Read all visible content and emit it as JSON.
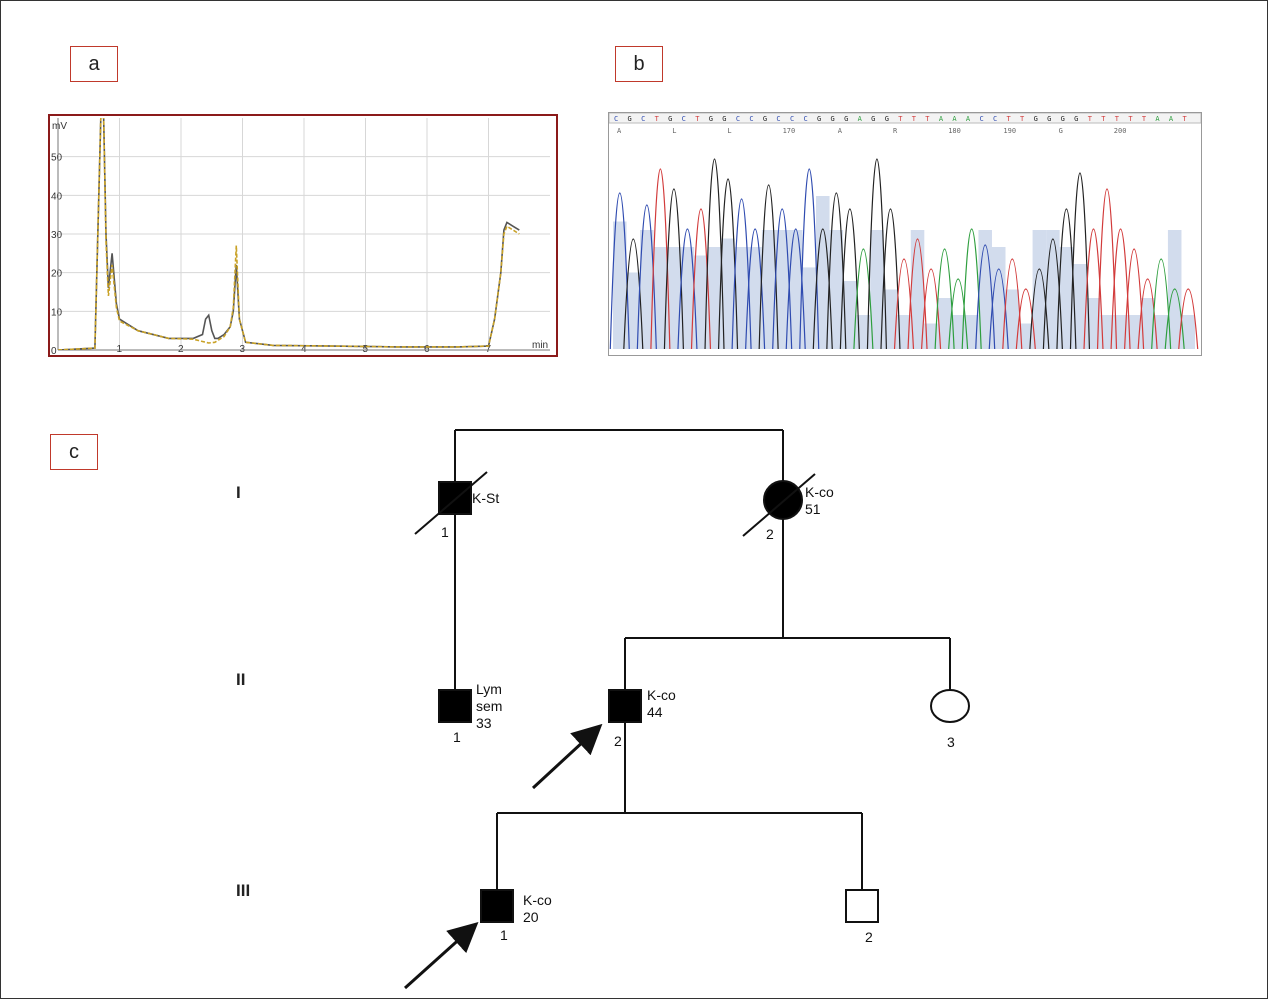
{
  "panels": {
    "a": "a",
    "b": "b",
    "c": "c"
  },
  "chart_data": {
    "type": "line",
    "ylabel": "mV",
    "xlabel": "min",
    "xlim": [
      0,
      8.0
    ],
    "ylim": [
      0,
      60
    ],
    "x_ticks": [
      "1",
      "2",
      "3",
      "4",
      "5",
      "6",
      "7"
    ],
    "y_ticks": [
      "0",
      "10",
      "20",
      "30",
      "40",
      "50"
    ],
    "grid": true,
    "series": [
      {
        "style": "solid",
        "color": "#555555",
        "x": [
          0,
          0.6,
          0.7,
          0.74,
          0.78,
          0.82,
          0.88,
          0.95,
          1.0,
          1.3,
          1.8,
          2.2,
          2.35,
          2.4,
          2.45,
          2.5,
          2.55,
          2.6,
          2.7,
          2.8,
          2.85,
          2.9,
          2.95,
          3.05,
          3.5,
          4.5,
          5.5,
          6.5,
          7.0,
          7.1,
          7.2,
          7.25,
          7.3,
          7.4,
          7.5
        ],
        "y": [
          0,
          0.5,
          62,
          62,
          30,
          16,
          25,
          12,
          8,
          5,
          3,
          3,
          4,
          8,
          9,
          5,
          3,
          3,
          4,
          6,
          10,
          22,
          8,
          2,
          1.2,
          1,
          0.8,
          0.8,
          1,
          8,
          20,
          31,
          33,
          32,
          31
        ]
      },
      {
        "style": "dashed",
        "color": "#c9a227",
        "x": [
          0,
          0.6,
          0.7,
          0.74,
          0.78,
          0.82,
          0.88,
          0.95,
          1.0,
          1.3,
          1.8,
          2.2,
          2.35,
          2.45,
          2.55,
          2.7,
          2.8,
          2.85,
          2.9,
          2.95,
          3.05,
          3.5,
          4.5,
          5.5,
          6.5,
          7.0,
          7.1,
          7.2,
          7.25,
          7.3,
          7.4,
          7.5
        ],
        "y": [
          0,
          0.5,
          62,
          62,
          28,
          14,
          22,
          11,
          7.5,
          5,
          3,
          2.8,
          2.2,
          1.8,
          2,
          3.5,
          6,
          11,
          27,
          8,
          2,
          1.2,
          1,
          0.8,
          0.8,
          1,
          8,
          20,
          30,
          32,
          31,
          30
        ]
      }
    ]
  },
  "sequence": {
    "bases": "CGCTGCTGGCCGCCCGGGAGGTTTAAACCTTGGGGTTTTTAAT",
    "annotations": [
      "A",
      "L",
      "L",
      "170",
      "A",
      "R",
      "180",
      "190",
      "G",
      "200"
    ]
  },
  "pedigree": {
    "generations": [
      "I",
      "II",
      "III"
    ],
    "individuals": [
      {
        "id": "I-1",
        "number": "1",
        "sex": "male",
        "affected": true,
        "deceased": true,
        "labels": [
          "K-St"
        ]
      },
      {
        "id": "I-2",
        "number": "2",
        "sex": "female",
        "affected": true,
        "deceased": true,
        "labels": [
          "K-co",
          "51"
        ]
      },
      {
        "id": "II-1",
        "number": "1",
        "sex": "male",
        "affected": true,
        "deceased": false,
        "labels": [
          "Lym",
          "sem",
          "33"
        ]
      },
      {
        "id": "II-2",
        "number": "2",
        "sex": "male",
        "affected": true,
        "deceased": false,
        "proband": true,
        "labels": [
          "K-co",
          "44"
        ]
      },
      {
        "id": "II-3",
        "number": "3",
        "sex": "female",
        "affected": false,
        "deceased": false,
        "labels": []
      },
      {
        "id": "III-1",
        "number": "1",
        "sex": "male",
        "affected": true,
        "deceased": false,
        "proband": true,
        "labels": [
          "K-co",
          "20"
        ]
      },
      {
        "id": "III-2",
        "number": "2",
        "sex": "male",
        "affected": false,
        "deceased": false,
        "labels": []
      }
    ]
  }
}
